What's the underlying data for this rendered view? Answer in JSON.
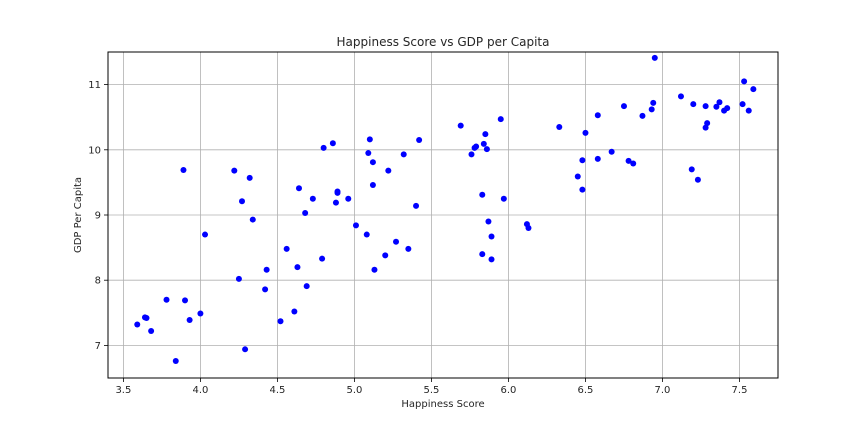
{
  "chart_data": {
    "type": "scatter",
    "title": "Happiness Score vs GDP per Capita",
    "xlabel": "Happiness Score",
    "ylabel": "GDP Per Capita",
    "xlim": [
      3.4,
      7.75
    ],
    "ylim": [
      6.5,
      11.5
    ],
    "xticks": [
      "3.5",
      "4.0",
      "4.5",
      "5.0",
      "5.5",
      "6.0",
      "6.5",
      "7.0",
      "7.5"
    ],
    "yticks": [
      "7",
      "8",
      "9",
      "10",
      "11"
    ],
    "grid": true,
    "point_color": "#0000ff",
    "points": [
      [
        3.59,
        7.32
      ],
      [
        3.64,
        7.43
      ],
      [
        3.65,
        7.42
      ],
      [
        3.68,
        7.22
      ],
      [
        3.78,
        7.7
      ],
      [
        3.84,
        6.76
      ],
      [
        3.89,
        9.69
      ],
      [
        3.9,
        7.69
      ],
      [
        3.93,
        7.39
      ],
      [
        4.0,
        7.49
      ],
      [
        4.03,
        8.7
      ],
      [
        4.22,
        9.68
      ],
      [
        4.25,
        8.02
      ],
      [
        4.27,
        9.21
      ],
      [
        4.29,
        6.94
      ],
      [
        4.32,
        9.57
      ],
      [
        4.34,
        8.93
      ],
      [
        4.42,
        7.86
      ],
      [
        4.43,
        8.16
      ],
      [
        4.52,
        7.37
      ],
      [
        4.56,
        8.48
      ],
      [
        4.61,
        7.52
      ],
      [
        4.63,
        8.2
      ],
      [
        4.64,
        9.41
      ],
      [
        4.68,
        9.03
      ],
      [
        4.69,
        7.91
      ],
      [
        4.73,
        9.25
      ],
      [
        4.79,
        8.33
      ],
      [
        4.8,
        10.03
      ],
      [
        4.86,
        10.1
      ],
      [
        4.88,
        9.19
      ],
      [
        4.89,
        9.36
      ],
      [
        4.89,
        9.34
      ],
      [
        4.96,
        9.25
      ],
      [
        5.01,
        8.84
      ],
      [
        5.08,
        8.7
      ],
      [
        5.09,
        9.95
      ],
      [
        5.1,
        10.16
      ],
      [
        5.12,
        9.81
      ],
      [
        5.12,
        9.46
      ],
      [
        5.13,
        8.16
      ],
      [
        5.2,
        8.38
      ],
      [
        5.22,
        9.68
      ],
      [
        5.27,
        8.59
      ],
      [
        5.32,
        9.93
      ],
      [
        5.35,
        8.48
      ],
      [
        5.4,
        9.14
      ],
      [
        5.42,
        10.15
      ],
      [
        5.69,
        10.37
      ],
      [
        5.76,
        9.93
      ],
      [
        5.78,
        10.03
      ],
      [
        5.79,
        10.05
      ],
      [
        5.83,
        9.31
      ],
      [
        5.83,
        8.4
      ],
      [
        5.84,
        10.09
      ],
      [
        5.85,
        10.24
      ],
      [
        5.86,
        10.01
      ],
      [
        5.87,
        8.9
      ],
      [
        5.89,
        8.67
      ],
      [
        5.89,
        8.32
      ],
      [
        5.95,
        10.47
      ],
      [
        5.97,
        9.25
      ],
      [
        6.12,
        8.86
      ],
      [
        6.13,
        8.8
      ],
      [
        6.33,
        10.35
      ],
      [
        6.45,
        9.59
      ],
      [
        6.48,
        9.84
      ],
      [
        6.48,
        9.39
      ],
      [
        6.5,
        10.26
      ],
      [
        6.58,
        10.53
      ],
      [
        6.58,
        9.86
      ],
      [
        6.67,
        9.97
      ],
      [
        6.75,
        10.67
      ],
      [
        6.78,
        9.83
      ],
      [
        6.81,
        9.79
      ],
      [
        6.87,
        10.52
      ],
      [
        6.93,
        10.62
      ],
      [
        6.94,
        10.72
      ],
      [
        6.95,
        11.41
      ],
      [
        7.12,
        10.82
      ],
      [
        7.19,
        9.7
      ],
      [
        7.2,
        10.7
      ],
      [
        7.23,
        9.54
      ],
      [
        7.28,
        10.34
      ],
      [
        7.28,
        10.67
      ],
      [
        7.29,
        10.41
      ],
      [
        7.35,
        10.66
      ],
      [
        7.37,
        10.73
      ],
      [
        7.4,
        10.6
      ],
      [
        7.42,
        10.64
      ],
      [
        7.52,
        10.7
      ],
      [
        7.53,
        11.05
      ],
      [
        7.56,
        10.6
      ],
      [
        7.59,
        10.93
      ]
    ]
  }
}
